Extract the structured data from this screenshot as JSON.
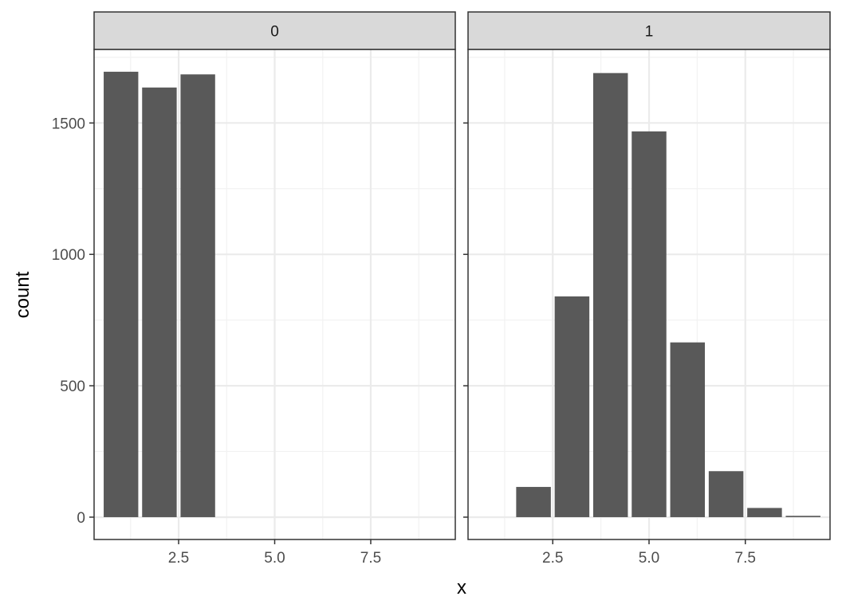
{
  "chart_data": {
    "type": "bar",
    "xlabel": "x",
    "ylabel": "count",
    "xlim": [
      0.3,
      9.7
    ],
    "ylim": [
      -85,
      1780
    ],
    "x_ticks": [
      2.5,
      5.0,
      7.5
    ],
    "x_tick_labels": [
      "2.5",
      "5.0",
      "7.5"
    ],
    "y_ticks": [
      0,
      500,
      1000,
      1500
    ],
    "y_tick_labels": [
      "0",
      "500",
      "1000",
      "1500"
    ],
    "grid": true,
    "bar_width": 0.9,
    "bar_color": "#595959",
    "panels": [
      {
        "strip_label": "0",
        "x": [
          1,
          2,
          3
        ],
        "values": [
          1695,
          1635,
          1685
        ]
      },
      {
        "strip_label": "1",
        "x": [
          2,
          3,
          4,
          5,
          6,
          7,
          8,
          9
        ],
        "values": [
          115,
          840,
          1690,
          1468,
          665,
          175,
          35,
          5
        ]
      }
    ]
  }
}
